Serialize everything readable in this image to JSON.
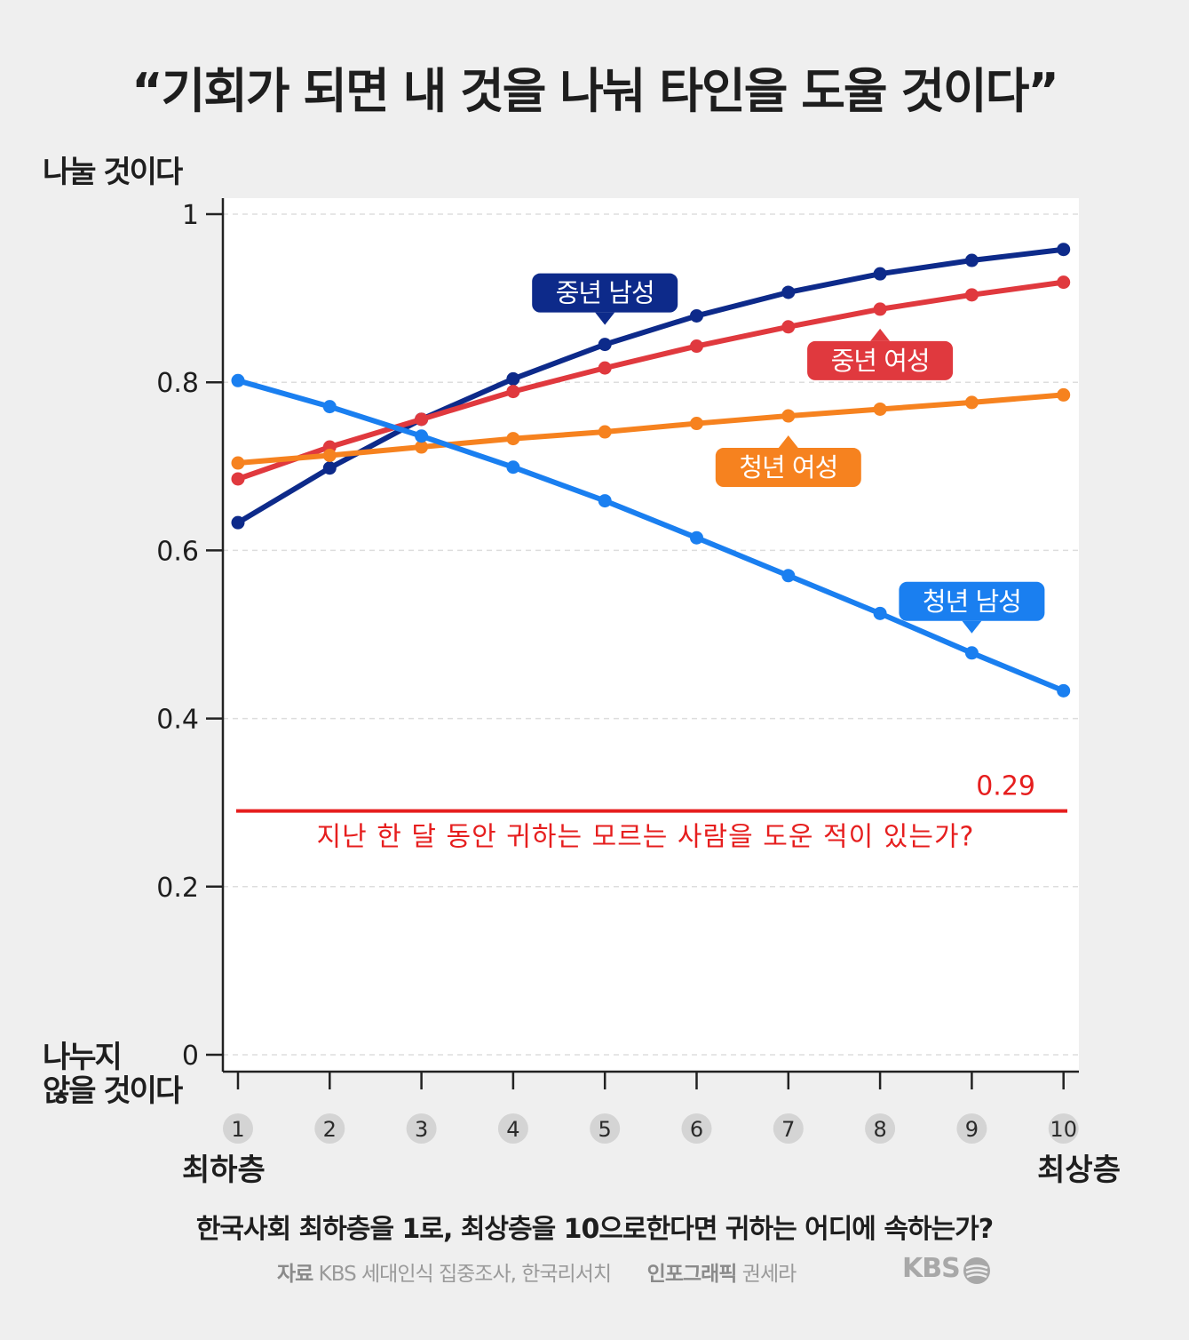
{
  "chart_data": {
    "type": "line",
    "title": "“기회가 되면 내 것을 나눠 타인을 도울 것이다”",
    "ylabel_top": "나눌 것이다",
    "ylabel_bottom_1": "나누지",
    "ylabel_bottom_2": "않을 것이다",
    "xlabel": "한국사회 최하층을 1로, 최상층을 10으로한다면 귀하는 어디에 속하는가?",
    "x": [
      1,
      2,
      3,
      4,
      5,
      6,
      7,
      8,
      9,
      10
    ],
    "x_tick_labels": [
      "1",
      "2",
      "3",
      "4",
      "5",
      "6",
      "7",
      "8",
      "9",
      "10"
    ],
    "x_end_labels": {
      "left": "최하층",
      "right": "최상층"
    },
    "ylim": [
      0,
      1
    ],
    "yticks": [
      0,
      0.2,
      0.4,
      0.6,
      0.8,
      1
    ],
    "ytick_labels": [
      "0",
      "0.2",
      "0.4",
      "0.6",
      "0.8",
      "1"
    ],
    "grid": true,
    "series": [
      {
        "name": "중년 남성",
        "color": "#0d2a8a",
        "values": [
          0.633,
          0.698,
          0.756,
          0.804,
          0.845,
          0.879,
          0.907,
          0.929,
          0.945,
          0.958
        ]
      },
      {
        "name": "중년 여성",
        "color": "#e0393e",
        "values": [
          0.685,
          0.723,
          0.756,
          0.789,
          0.817,
          0.843,
          0.866,
          0.887,
          0.904,
          0.919
        ]
      },
      {
        "name": "청년 여성",
        "color": "#f6821f",
        "values": [
          0.704,
          0.713,
          0.723,
          0.733,
          0.741,
          0.751,
          0.76,
          0.768,
          0.776,
          0.785
        ]
      },
      {
        "name": "청년 남성",
        "color": "#1a7ff0",
        "values": [
          0.802,
          0.771,
          0.736,
          0.699,
          0.659,
          0.615,
          0.57,
          0.525,
          0.478,
          0.433
        ]
      }
    ],
    "reference_line": {
      "value": 0.29,
      "label": "0.29",
      "color": "#e61e1e",
      "caption": "지난 한 달 동안 귀하는 모르는 사람을 도운 적이 있는가?"
    }
  },
  "footer": {
    "source_label": "자료",
    "source_text": "KBS 세대인식 집중조사, 한국리서치",
    "credit_label": "인포그래픽",
    "credit_text": "권세라",
    "logo_text": "KBS"
  }
}
